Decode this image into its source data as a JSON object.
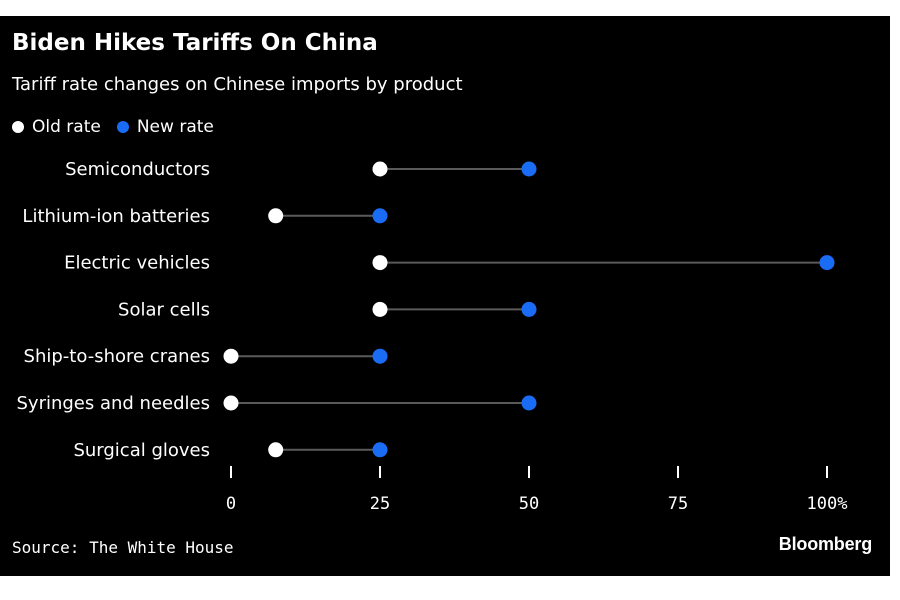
{
  "title": "Biden Hikes Tariffs On China",
  "subtitle": "Tariff rate changes on Chinese imports by product",
  "legend": [
    {
      "label": "Old rate",
      "color": "#ffffff"
    },
    {
      "label": "New rate",
      "color": "#1a6cf5"
    }
  ],
  "source": "Source: The White House",
  "brand": "Bloomberg",
  "colors": {
    "background": "#000000",
    "text": "#ffffff",
    "connector": "#5a5a5a",
    "old": "#ffffff",
    "new": "#1a6cf5"
  },
  "chart_data": {
    "type": "scatter",
    "subtype": "dumbbell",
    "title": "Biden Hikes Tariffs On China",
    "subtitle": "Tariff rate changes on Chinese imports by product",
    "categories": [
      "Semiconductors",
      "Lithium-ion batteries",
      "Electric vehicles",
      "Solar cells",
      "Ship-to-shore cranes",
      "Syringes and needles",
      "Surgical gloves"
    ],
    "series": [
      {
        "name": "Old rate",
        "values": [
          25,
          7.5,
          25,
          25,
          0,
          0,
          7.5
        ]
      },
      {
        "name": "New rate",
        "values": [
          50,
          25,
          100,
          50,
          25,
          50,
          25
        ]
      }
    ],
    "xlim": [
      0,
      100
    ],
    "xticks": [
      0,
      25,
      50,
      75,
      100
    ],
    "xtick_labels": [
      "0",
      "25",
      "50",
      "75",
      "100%"
    ],
    "grid": false,
    "legend_position": "top-left"
  }
}
